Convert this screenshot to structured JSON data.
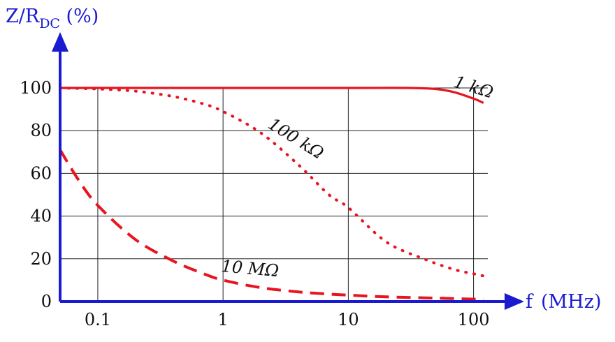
{
  "chart_data": {
    "type": "line",
    "x_scale": "log",
    "xlim": [
      0.05,
      130
    ],
    "ylim": [
      0,
      100
    ],
    "grid": true,
    "title": "",
    "ylabel_main": "Z/R",
    "ylabel_sub": "DC",
    "ylabel_unit": " (%)",
    "xlabel_prefix": "f",
    "xlabel_unit": "(MHz)",
    "x_ticks": [
      {
        "value": 0.1,
        "label": "0.1"
      },
      {
        "value": 1,
        "label": "1"
      },
      {
        "value": 10,
        "label": "10"
      },
      {
        "value": 100,
        "label": "100"
      }
    ],
    "y_ticks": [
      {
        "value": 0,
        "label": "0"
      },
      {
        "value": 20,
        "label": "20"
      },
      {
        "value": 40,
        "label": "40"
      },
      {
        "value": 60,
        "label": "60"
      },
      {
        "value": 80,
        "label": "80"
      },
      {
        "value": 100,
        "label": "100"
      }
    ],
    "series": [
      {
        "name": "1 kΩ",
        "style": "solid",
        "color": "#e8141e",
        "x": [
          0.05,
          0.1,
          1,
          10,
          30,
          50,
          70,
          100,
          120
        ],
        "y": [
          100,
          100,
          100,
          100,
          100,
          99.5,
          98,
          95,
          93
        ]
      },
      {
        "name": "100 kΩ",
        "style": "dotted",
        "color": "#e8141e",
        "x": [
          0.05,
          0.1,
          0.2,
          0.4,
          0.7,
          1,
          2,
          4,
          7,
          10,
          20,
          40,
          70,
          100,
          120
        ],
        "y": [
          100,
          99.5,
          98.5,
          96,
          92.5,
          89,
          79,
          64,
          50,
          44,
          28,
          20,
          15,
          13,
          12
        ]
      },
      {
        "name": "10 MΩ",
        "style": "dashed",
        "color": "#e8141e",
        "x": [
          0.05,
          0.07,
          0.1,
          0.2,
          0.4,
          0.7,
          1,
          2,
          4,
          7,
          10,
          20,
          50,
          120
        ],
        "y": [
          71,
          57,
          45,
          29,
          19,
          13,
          10,
          6.5,
          4.5,
          3.5,
          3,
          2.2,
          1.6,
          1
        ]
      }
    ],
    "colors": {
      "axis": "#1a1ad0",
      "grid": "#222222",
      "series": "#e8141e"
    }
  }
}
